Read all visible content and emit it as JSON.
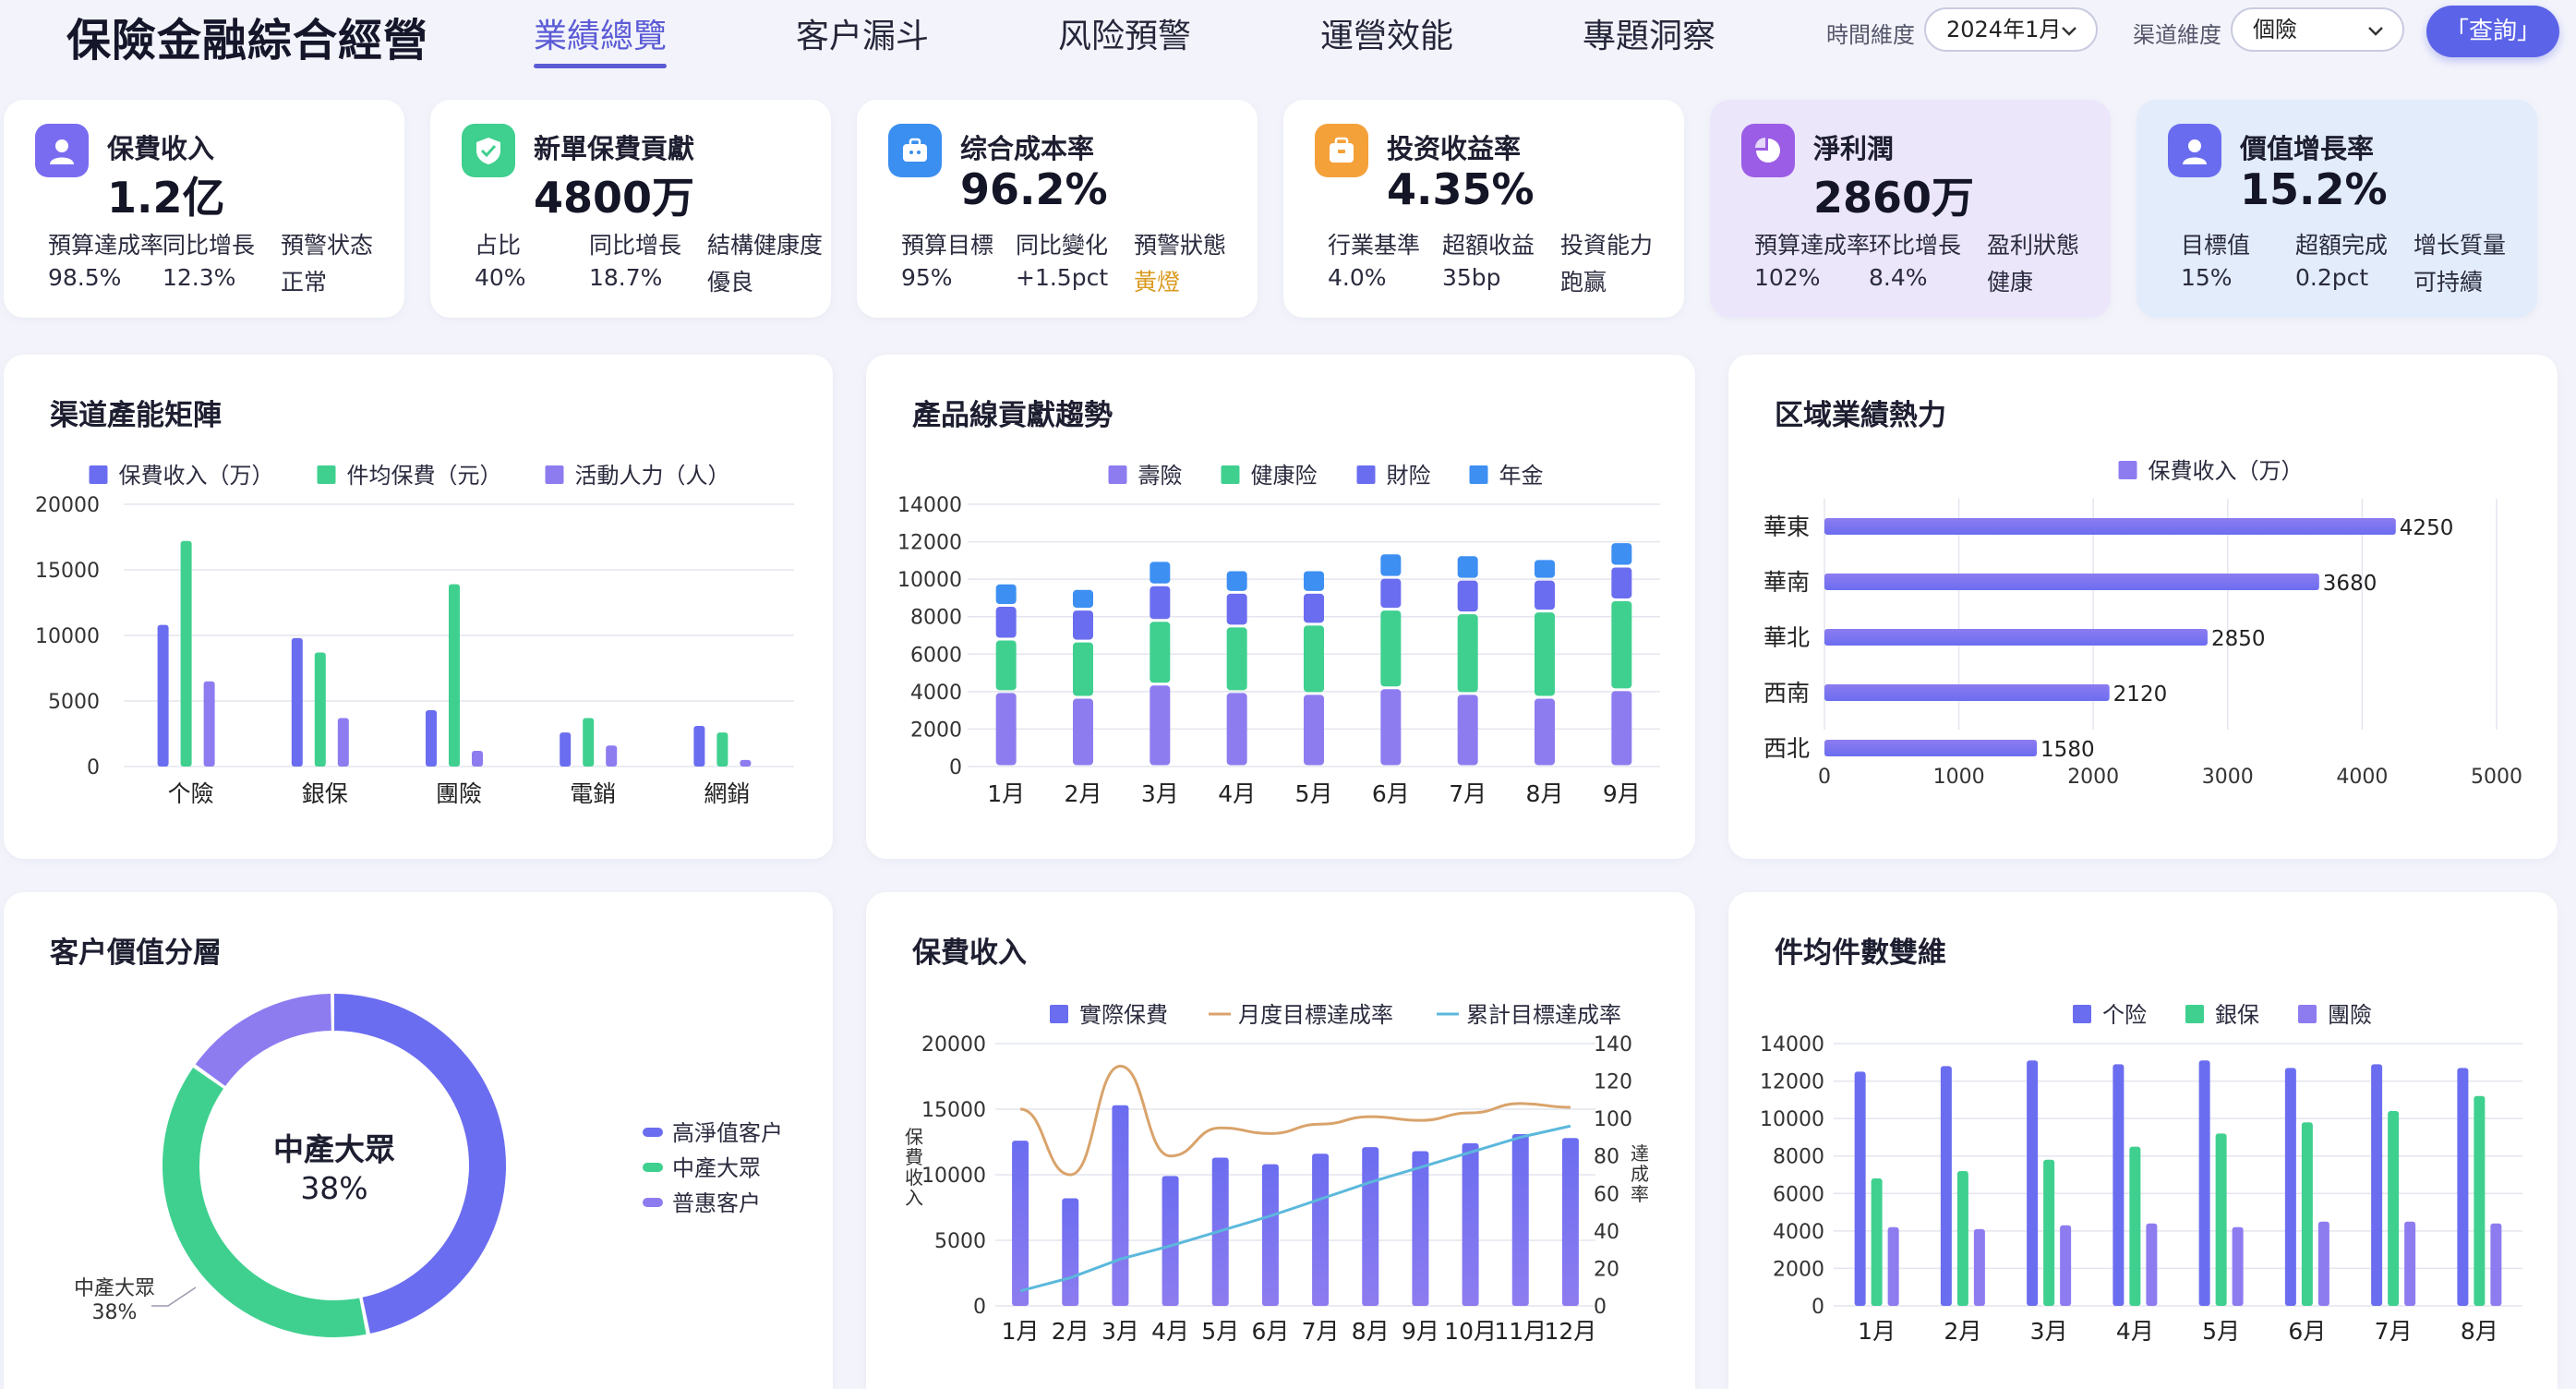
{
  "brand": "保險金融綜合經營",
  "nav": [
    "業績總覽",
    "客户漏斗",
    "风险預警",
    "運營效能",
    "專題洞察"
  ],
  "filters": {
    "time_label": "時間維度",
    "time_value": "2024年1月",
    "channel_label": "渠道維度",
    "channel_value": "個險",
    "query_label": "「查詢」"
  },
  "kpis": [
    {
      "title": "保費收入",
      "value": "1.2亿",
      "icon": "user-icon",
      "color": "#7a6cf0",
      "subs": [
        {
          "label": "預算達成率",
          "value": "98.5%"
        },
        {
          "label": "同比增長",
          "value": "12.3%"
        },
        {
          "label": "預警状态",
          "value": "正常"
        }
      ]
    },
    {
      "title": "新單保費貢獻",
      "value": "4800万",
      "icon": "shield-check-icon",
      "color": "#3fcf8e",
      "subs": [
        {
          "label": "占比",
          "value": "40%"
        },
        {
          "label": "同比增長",
          "value": "18.7%"
        },
        {
          "label": "結構健康度",
          "value": "優良"
        }
      ]
    },
    {
      "title": "综合成本率",
      "value": "96.2%",
      "icon": "briefcase-icon",
      "color": "#3b8ff0",
      "subs": [
        {
          "label": "預算目標",
          "value": "95%"
        },
        {
          "label": "同比變化",
          "value": "+1.5pct"
        },
        {
          "label": "預警狀態",
          "value": "黃燈"
        }
      ]
    },
    {
      "title": "投资收益率",
      "value": "4.35%",
      "icon": "wallet-icon",
      "color": "#f5a13a",
      "subs": [
        {
          "label": "行業基準",
          "value": "4.0%"
        },
        {
          "label": "超額收益",
          "value": "35bp"
        },
        {
          "label": "投資能力",
          "value": "跑赢"
        }
      ]
    },
    {
      "title": "淨利潤",
      "value": "2860万",
      "icon": "pie-chart-icon",
      "color": "#9b5de5",
      "subs": [
        {
          "label": "預算達成率",
          "value": "102%"
        },
        {
          "label": "环比增長",
          "value": "8.4%"
        },
        {
          "label": "盈利狀態",
          "value": "健康"
        }
      ]
    },
    {
      "title": "價值增長率",
      "value": "15.2%",
      "icon": "user-icon",
      "color": "#6a6cf0",
      "subs": [
        {
          "label": "目標值",
          "value": "15%"
        },
        {
          "label": "超額完成",
          "value": "0.2pct"
        },
        {
          "label": "增长質量",
          "value": "可持續"
        }
      ]
    }
  ],
  "colors": {
    "purple": "#6b6df0",
    "green": "#3fd08f",
    "violet": "#8d7cf0",
    "blue": "#3d8ff2",
    "orange": "#d9a36b",
    "teal": "#5bb8dc"
  },
  "chart_data": [
    {
      "id": "channel-matrix",
      "type": "bar",
      "title": "渠道產能矩陣",
      "categories": [
        "个險",
        "銀保",
        "團險",
        "電銷",
        "網銷"
      ],
      "series": [
        {
          "name": "保費收入（万）",
          "values": [
            10800,
            9800,
            4300,
            2600,
            3100
          ]
        },
        {
          "name": "件均保費（元）",
          "values": [
            17200,
            8700,
            13900,
            3700,
            2600
          ]
        },
        {
          "name": "活動人力（人）",
          "values": [
            6500,
            3700,
            1200,
            1600,
            500
          ]
        }
      ],
      "ylim": [
        0,
        20000
      ],
      "yticks": [
        0,
        5000,
        10000,
        15000,
        20000
      ],
      "legend": "top",
      "grid": true
    },
    {
      "id": "product-trend",
      "type": "bar",
      "title": "產品線貢獻趨勢",
      "stacked": true,
      "categories": [
        "1月",
        "2月",
        "3月",
        "4月",
        "5月",
        "6月",
        "7月",
        "8月",
        "9月"
      ],
      "series": [
        {
          "name": "壽險",
          "values": [
            4000,
            3700,
            4400,
            4000,
            3900,
            4200,
            3900,
            3700,
            4100
          ]
        },
        {
          "name": "健康险",
          "values": [
            2800,
            3000,
            3400,
            3500,
            3700,
            4200,
            4300,
            4600,
            4800
          ]
        },
        {
          "name": "財险",
          "values": [
            1800,
            1700,
            1900,
            1800,
            1700,
            1700,
            1800,
            1700,
            1800
          ]
        },
        {
          "name": "年金",
          "values": [
            1200,
            1100,
            1300,
            1200,
            1200,
            1300,
            1300,
            1100,
            1300
          ]
        }
      ],
      "ylim": [
        0,
        14000
      ],
      "yticks": [
        0,
        2000,
        4000,
        6000,
        8000,
        10000,
        12000,
        14000
      ],
      "legend": "top",
      "grid": true
    },
    {
      "id": "region-heat",
      "type": "bar",
      "orientation": "horizontal",
      "title": "区域業績熱力",
      "categories": [
        "華東",
        "華南",
        "華北",
        "西南",
        "西北"
      ],
      "series": [
        {
          "name": "保費收入（万）",
          "values": [
            4250,
            3680,
            2850,
            2120,
            1580
          ]
        }
      ],
      "xlim": [
        0,
        5000
      ],
      "xticks": [
        0,
        1000,
        2000,
        3000,
        4000,
        5000
      ],
      "legend": "top",
      "grid": true
    },
    {
      "id": "customer-tier",
      "type": "pie",
      "title": "客户價值分層",
      "center_label": "中產大眾",
      "center_value": "38%",
      "slices": [
        {
          "name": "高淨值客户",
          "value": 47
        },
        {
          "name": "中產大眾",
          "value": 38
        },
        {
          "name": "普惠客户",
          "value": 15
        }
      ],
      "callout": {
        "name": "中產大眾",
        "value": "38%"
      },
      "legend": "right"
    },
    {
      "id": "premium-income",
      "type": "bar",
      "title": "保費收入",
      "categories": [
        "1月",
        "2月",
        "3月",
        "4月",
        "5月",
        "6月",
        "7月",
        "8月",
        "9月",
        "10月",
        "11月",
        "12月"
      ],
      "series": [
        {
          "name": "實際保費",
          "type": "bar",
          "values": [
            12600,
            8200,
            15300,
            9900,
            11300,
            10800,
            11600,
            12100,
            11800,
            12400,
            13100,
            12800
          ]
        },
        {
          "name": "月度目標達成率",
          "type": "line",
          "axis": "right",
          "values": [
            105,
            70,
            128,
            80,
            95,
            92,
            97,
            101,
            99,
            103,
            108,
            106
          ]
        },
        {
          "name": "累計目標達成率",
          "type": "line",
          "axis": "right",
          "values": [
            8,
            15,
            25,
            32,
            40,
            48,
            57,
            66,
            74,
            82,
            90,
            96
          ]
        }
      ],
      "ylabel": "保費收入",
      "y2label": "達成率",
      "ylim": [
        0,
        20000
      ],
      "yticks": [
        0,
        5000,
        10000,
        15000,
        20000
      ],
      "y2lim": [
        0,
        140
      ],
      "y2ticks": [
        0,
        20,
        40,
        60,
        80,
        100,
        120,
        140
      ],
      "legend": "top",
      "grid": true
    },
    {
      "id": "avg-policy-count",
      "type": "bar",
      "title": "件均件數雙維",
      "categories": [
        "1月",
        "2月",
        "3月",
        "4月",
        "5月",
        "6月",
        "7月",
        "8月"
      ],
      "series": [
        {
          "name": "个险",
          "values": [
            12500,
            12800,
            13100,
            12900,
            13100,
            12700,
            12900,
            12700
          ]
        },
        {
          "name": "銀保",
          "values": [
            6800,
            7200,
            7800,
            8500,
            9200,
            9800,
            10400,
            11200
          ]
        },
        {
          "name": "團險",
          "values": [
            4200,
            4100,
            4300,
            4400,
            4200,
            4500,
            4500,
            4400
          ]
        }
      ],
      "ylim": [
        0,
        14000
      ],
      "yticks": [
        0,
        2000,
        4000,
        6000,
        8000,
        10000,
        12000,
        14000
      ],
      "legend": "top",
      "grid": true
    }
  ]
}
